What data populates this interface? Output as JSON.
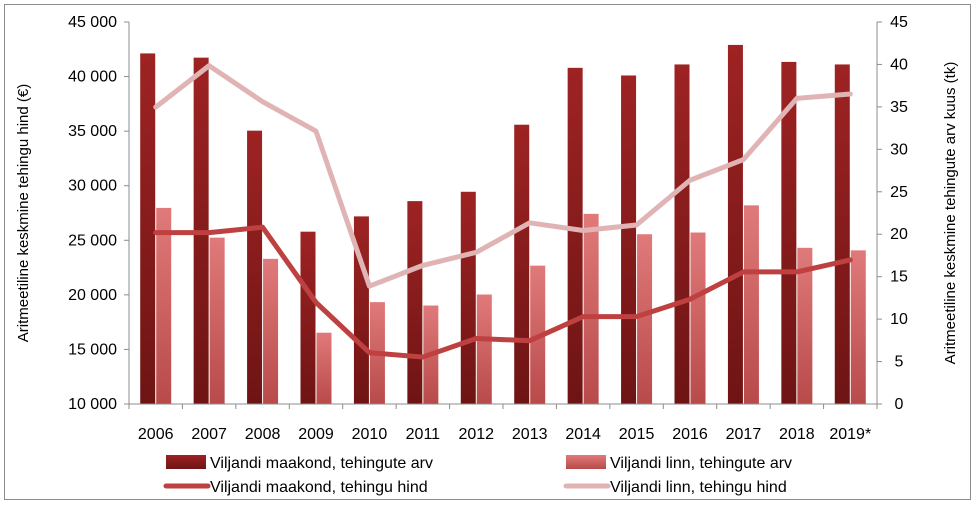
{
  "chart_data": {
    "type": "bar",
    "categories": [
      "2006",
      "2007",
      "2008",
      "2009",
      "2010",
      "2011",
      "2012",
      "2013",
      "2014",
      "2015",
      "2016",
      "2017",
      "2018",
      "2019*"
    ],
    "ylabel_left": "Aritmeetiline keskmine tehingu hind (€)",
    "ylabel_right": "Aritmeetiline keskmine tehingute arv kuus (tk)",
    "ylim_left": [
      10000,
      45000
    ],
    "ylim_right": [
      0,
      45
    ],
    "yticks_left": [
      "10 000",
      "15 000",
      "20 000",
      "25 000",
      "30 000",
      "35 000",
      "40 000",
      "45 000"
    ],
    "yticks_right": [
      "0",
      "5",
      "10",
      "15",
      "20",
      "25",
      "30",
      "35",
      "40",
      "45"
    ],
    "series": [
      {
        "name": "Viljandi maakond, tehingute arv",
        "kind": "bar",
        "axis": "right",
        "color": "#8b1a1a",
        "values": [
          41.3,
          40.8,
          32.2,
          20.3,
          22.1,
          23.9,
          25.0,
          32.9,
          39.6,
          38.7,
          40.0,
          42.3,
          40.3,
          40.0
        ]
      },
      {
        "name": "Viljandi linn, tehingute arv",
        "kind": "bar",
        "axis": "right",
        "color": "#d96b6b",
        "values": [
          23.1,
          19.6,
          17.1,
          8.4,
          12.0,
          11.6,
          12.9,
          16.3,
          22.4,
          20.0,
          20.2,
          23.4,
          18.4,
          18.1
        ]
      },
      {
        "name": "Viljandi maakond, tehingu hind",
        "kind": "line",
        "axis": "left",
        "color": "#bf4040",
        "values": [
          25700,
          25700,
          26200,
          19300,
          14700,
          14300,
          16000,
          15800,
          18000,
          18000,
          19600,
          22100,
          22100,
          23200
        ]
      },
      {
        "name": "Viljandi linn, tehingu hind",
        "kind": "line",
        "axis": "left",
        "color": "#e0b4b4",
        "values": [
          37200,
          41000,
          37700,
          35000,
          20800,
          22700,
          23900,
          26600,
          25900,
          26400,
          30500,
          32400,
          38000,
          38400
        ]
      }
    ],
    "legend": "bottom"
  }
}
